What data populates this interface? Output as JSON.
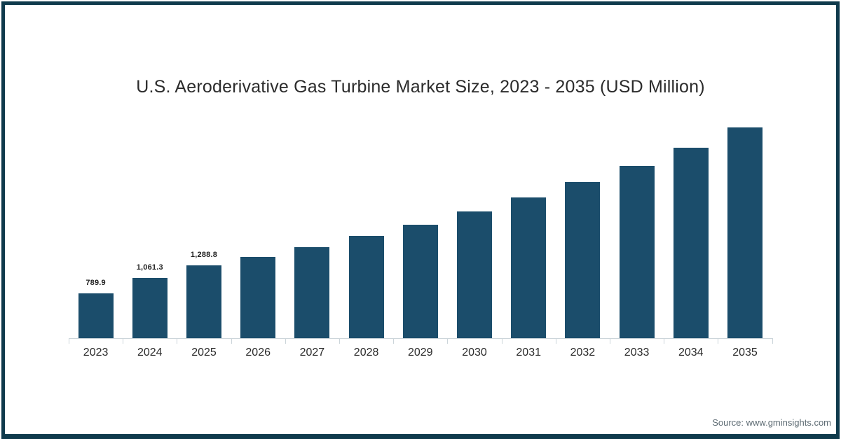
{
  "title": "U.S. Aeroderivative Gas Turbine Market Size, 2023 - 2035 (USD Million)",
  "source": "Source: www.gminsights.com",
  "frame": {
    "border_color": "#0f3a4c",
    "background": "#ffffff"
  },
  "chart_data": {
    "type": "bar",
    "title": "U.S. Aeroderivative Gas Turbine Market Size, 2023 - 2035 (USD Million)",
    "xlabel": "",
    "ylabel": "USD Million",
    "categories": [
      "2023",
      "2024",
      "2025",
      "2026",
      "2027",
      "2028",
      "2029",
      "2030",
      "2031",
      "2032",
      "2033",
      "2034",
      "2035"
    ],
    "values": [
      789.9,
      1061.3,
      1288.8,
      1430,
      1600,
      1800,
      2000,
      2230,
      2480,
      2750,
      3040,
      3360,
      3710
    ],
    "value_labels": [
      "789.9",
      "1,061.3",
      "1,288.8",
      null,
      null,
      null,
      null,
      null,
      null,
      null,
      null,
      null,
      null
    ],
    "ylim": [
      0,
      3900
    ],
    "grid": false,
    "legend_position": "none",
    "y_axis_visible": false,
    "x_axis_visible": true,
    "bar_color": "#1b4d6b",
    "axis_color": "#ccd5da",
    "value_label_color": "#1f1f1f",
    "tick_label_color": "#2b2b2b"
  }
}
